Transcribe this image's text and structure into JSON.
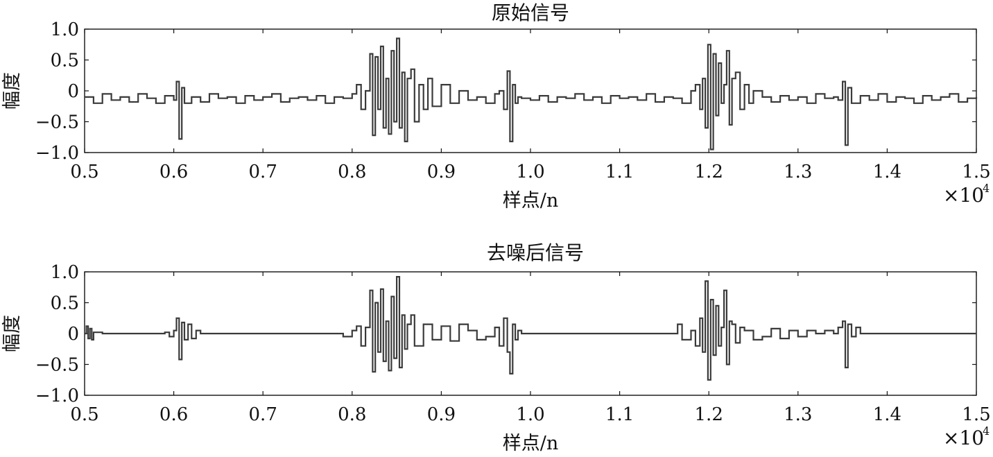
{
  "chart_data": [
    {
      "type": "line",
      "title": "原始信号",
      "xlabel": "样点/n",
      "ylabel": "幅度",
      "x_multiplier": "×10",
      "x_multiplier_exp": "4",
      "xlim": [
        0.5,
        1.5
      ],
      "ylim": [
        -1.0,
        1.0
      ],
      "x_ticks": [
        "0.5",
        "0.6",
        "0.7",
        "0.8",
        "0.9",
        "1.0",
        "1.1",
        "1.2",
        "1.3",
        "1.4",
        "1.5"
      ],
      "y_ticks": [
        "1.0",
        "0.5",
        "0",
        "−0.5",
        "−1.0"
      ],
      "grid": false,
      "series": [
        {
          "color": "#3a3a3a",
          "x": [
            0.5,
            0.51,
            0.52,
            0.53,
            0.54,
            0.55,
            0.56,
            0.57,
            0.58,
            0.59,
            0.6,
            0.603,
            0.606,
            0.609,
            0.612,
            0.62,
            0.63,
            0.64,
            0.65,
            0.66,
            0.67,
            0.68,
            0.69,
            0.7,
            0.71,
            0.72,
            0.73,
            0.74,
            0.75,
            0.76,
            0.77,
            0.78,
            0.79,
            0.8,
            0.805,
            0.81,
            0.815,
            0.82,
            0.823,
            0.826,
            0.829,
            0.832,
            0.835,
            0.838,
            0.841,
            0.844,
            0.847,
            0.85,
            0.853,
            0.856,
            0.859,
            0.862,
            0.866,
            0.87,
            0.875,
            0.88,
            0.885,
            0.89,
            0.9,
            0.91,
            0.92,
            0.93,
            0.94,
            0.95,
            0.96,
            0.965,
            0.97,
            0.974,
            0.977,
            0.98,
            0.983,
            0.986,
            0.99,
            1.0,
            1.01,
            1.02,
            1.03,
            1.04,
            1.05,
            1.06,
            1.07,
            1.08,
            1.09,
            1.1,
            1.11,
            1.12,
            1.13,
            1.14,
            1.15,
            1.16,
            1.17,
            1.18,
            1.185,
            1.19,
            1.193,
            1.196,
            1.199,
            1.202,
            1.205,
            1.208,
            1.211,
            1.214,
            1.217,
            1.22,
            1.223,
            1.226,
            1.23,
            1.235,
            1.24,
            1.245,
            1.25,
            1.26,
            1.27,
            1.28,
            1.29,
            1.3,
            1.31,
            1.32,
            1.33,
            1.34,
            1.345,
            1.35,
            1.353,
            1.356,
            1.36,
            1.37,
            1.38,
            1.39,
            1.4,
            1.41,
            1.42,
            1.43,
            1.44,
            1.45,
            1.46,
            1.47,
            1.48,
            1.49,
            1.5
          ],
          "y": [
            -0.1,
            -0.2,
            -0.05,
            -0.15,
            -0.1,
            -0.18,
            -0.05,
            -0.12,
            -0.2,
            -0.08,
            -0.15,
            0.15,
            -0.78,
            0.05,
            -0.2,
            -0.1,
            -0.18,
            -0.05,
            -0.12,
            -0.1,
            -0.2,
            -0.08,
            -0.15,
            -0.1,
            -0.05,
            -0.18,
            -0.12,
            -0.1,
            -0.15,
            -0.08,
            -0.2,
            -0.1,
            -0.12,
            -0.05,
            0.1,
            -0.3,
            0.0,
            0.6,
            -0.72,
            0.55,
            -0.3,
            0.72,
            -0.6,
            0.2,
            -0.7,
            0.65,
            -0.5,
            0.85,
            -0.6,
            0.3,
            -0.82,
            0.2,
            0.35,
            -0.5,
            0.1,
            -0.3,
            0.2,
            -0.25,
            0.1,
            -0.2,
            0.0,
            -0.15,
            -0.1,
            -0.2,
            -0.05,
            0.0,
            -0.3,
            0.32,
            -0.82,
            0.1,
            -0.2,
            -0.1,
            -0.12,
            -0.15,
            -0.08,
            -0.18,
            -0.1,
            -0.12,
            -0.05,
            -0.15,
            -0.1,
            -0.2,
            -0.08,
            -0.12,
            -0.1,
            -0.15,
            -0.05,
            -0.18,
            -0.1,
            -0.12,
            -0.2,
            0.0,
            0.1,
            -0.3,
            0.2,
            -0.6,
            0.75,
            -0.95,
            0.6,
            -0.4,
            0.45,
            -0.2,
            0.1,
            0.65,
            -0.55,
            0.2,
            0.3,
            -0.3,
            0.1,
            -0.2,
            0.0,
            -0.1,
            -0.18,
            -0.08,
            -0.15,
            -0.1,
            -0.2,
            -0.05,
            -0.12,
            -0.1,
            -0.15,
            0.15,
            -0.88,
            0.05,
            -0.2,
            -0.08,
            -0.15,
            -0.05,
            -0.18,
            -0.1,
            -0.12,
            -0.2,
            -0.08,
            -0.15,
            -0.1,
            -0.05,
            -0.18,
            -0.12,
            -0.1
          ]
        }
      ]
    },
    {
      "type": "line",
      "title": "去噪后信号",
      "xlabel": "样点/n",
      "ylabel": "幅度",
      "x_multiplier": "×10",
      "x_multiplier_exp": "4",
      "xlim": [
        0.5,
        1.5
      ],
      "ylim": [
        -1.0,
        1.0
      ],
      "x_ticks": [
        "0.5",
        "0.6",
        "0.7",
        "0.8",
        "0.9",
        "1.0",
        "1.1",
        "1.2",
        "1.3",
        "1.4",
        "1.5"
      ],
      "y_ticks": [
        "1.0",
        "0.5",
        "0",
        "−0.5",
        "−1.0"
      ],
      "grid": false,
      "series": [
        {
          "color": "#3a3a3a",
          "x": [
            0.5,
            0.502,
            0.504,
            0.506,
            0.508,
            0.51,
            0.52,
            0.58,
            0.59,
            0.595,
            0.6,
            0.603,
            0.606,
            0.609,
            0.612,
            0.616,
            0.62,
            0.625,
            0.63,
            0.78,
            0.79,
            0.8,
            0.805,
            0.81,
            0.815,
            0.82,
            0.823,
            0.826,
            0.829,
            0.832,
            0.835,
            0.838,
            0.841,
            0.844,
            0.847,
            0.85,
            0.853,
            0.856,
            0.859,
            0.862,
            0.866,
            0.87,
            0.88,
            0.89,
            0.9,
            0.91,
            0.92,
            0.93,
            0.94,
            0.95,
            0.96,
            0.965,
            0.97,
            0.974,
            0.977,
            0.98,
            0.983,
            0.986,
            0.99,
            1.0,
            1.01,
            1.16,
            1.165,
            1.17,
            1.18,
            1.185,
            1.19,
            1.193,
            1.196,
            1.199,
            1.202,
            1.205,
            1.208,
            1.211,
            1.214,
            1.217,
            1.22,
            1.223,
            1.226,
            1.23,
            1.235,
            1.24,
            1.25,
            1.26,
            1.27,
            1.28,
            1.29,
            1.3,
            1.31,
            1.32,
            1.33,
            1.34,
            1.345,
            1.35,
            1.353,
            1.356,
            1.36,
            1.365,
            1.37,
            1.5
          ],
          "y": [
            0.0,
            0.12,
            -0.08,
            0.08,
            -0.1,
            0.02,
            0.0,
            0.0,
            0.02,
            -0.05,
            0.05,
            0.25,
            -0.42,
            0.18,
            -0.1,
            0.15,
            -0.08,
            0.05,
            0.0,
            0.0,
            -0.05,
            0.05,
            0.12,
            -0.2,
            0.1,
            0.7,
            -0.62,
            0.5,
            -0.3,
            0.72,
            -0.45,
            0.2,
            -0.6,
            0.6,
            -0.4,
            0.92,
            -0.55,
            0.3,
            -0.25,
            0.15,
            0.3,
            -0.2,
            0.15,
            -0.1,
            0.12,
            -0.12,
            0.15,
            0.05,
            -0.1,
            -0.05,
            0.1,
            -0.2,
            0.25,
            -0.3,
            -0.65,
            0.15,
            -0.1,
            0.05,
            0.0,
            0.0,
            0.0,
            0.0,
            0.15,
            -0.1,
            0.05,
            -0.2,
            0.25,
            -0.3,
            0.85,
            -0.75,
            0.55,
            -0.35,
            0.45,
            -0.2,
            0.1,
            0.7,
            -0.5,
            0.2,
            0.15,
            -0.15,
            0.1,
            0.05,
            -0.1,
            -0.05,
            0.08,
            -0.08,
            0.05,
            -0.05,
            0.05,
            0.0,
            0.05,
            0.0,
            0.1,
            0.2,
            -0.55,
            0.15,
            -0.05,
            0.1,
            0.0,
            0.0
          ]
        }
      ]
    }
  ]
}
